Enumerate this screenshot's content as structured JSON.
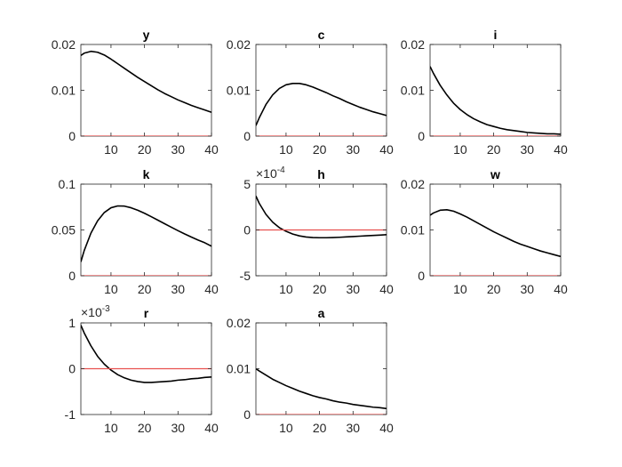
{
  "figure": {
    "background": "#ffffff"
  },
  "styles": {
    "response_color": "#000000",
    "zero_line_color": "#e8514f"
  },
  "chart_data": [
    {
      "type": "line",
      "title": "y",
      "xlim": [
        1,
        40
      ],
      "ylim": [
        0,
        0.02
      ],
      "xticks": [
        10,
        20,
        30,
        40
      ],
      "xtick_labels": [
        "10",
        "20",
        "30",
        "40"
      ],
      "yticks": [
        0,
        0.01,
        0.02
      ],
      "ytick_labels": [
        "0",
        "0.01",
        "0.02"
      ],
      "exponent_label": "",
      "series": [
        {
          "role": "response",
          "x": [
            1,
            2,
            4,
            6,
            8,
            10,
            12,
            14,
            16,
            18,
            20,
            22,
            24,
            26,
            28,
            30,
            32,
            34,
            36,
            38,
            40
          ],
          "y": [
            0.0176,
            0.0181,
            0.0185,
            0.0183,
            0.0177,
            0.0168,
            0.0158,
            0.0148,
            0.0138,
            0.0128,
            0.0119,
            0.011,
            0.0101,
            0.0093,
            0.0086,
            0.0079,
            0.0073,
            0.0067,
            0.0062,
            0.0057,
            0.0052
          ]
        },
        {
          "role": "zero",
          "x": [
            1,
            40
          ],
          "y": [
            0,
            0
          ]
        }
      ]
    },
    {
      "type": "line",
      "title": "c",
      "xlim": [
        1,
        40
      ],
      "ylim": [
        0,
        0.02
      ],
      "xticks": [
        10,
        20,
        30,
        40
      ],
      "xtick_labels": [
        "10",
        "20",
        "30",
        "40"
      ],
      "yticks": [
        0,
        0.01,
        0.02
      ],
      "ytick_labels": [
        "0",
        "0.01",
        "0.02"
      ],
      "exponent_label": "",
      "series": [
        {
          "role": "response",
          "x": [
            1,
            2,
            4,
            6,
            8,
            10,
            12,
            14,
            16,
            18,
            20,
            22,
            24,
            26,
            28,
            30,
            32,
            34,
            36,
            38,
            40
          ],
          "y": [
            0.0023,
            0.004,
            0.0069,
            0.009,
            0.0104,
            0.0112,
            0.0115,
            0.0115,
            0.0112,
            0.0107,
            0.0101,
            0.0095,
            0.0088,
            0.0082,
            0.0075,
            0.0069,
            0.0063,
            0.0058,
            0.0053,
            0.0049,
            0.0045
          ]
        },
        {
          "role": "zero",
          "x": [
            1,
            40
          ],
          "y": [
            0,
            0
          ]
        }
      ]
    },
    {
      "type": "line",
      "title": "i",
      "xlim": [
        1,
        40
      ],
      "ylim": [
        0,
        0.02
      ],
      "xticks": [
        10,
        20,
        30,
        40
      ],
      "xtick_labels": [
        "10",
        "20",
        "30",
        "40"
      ],
      "yticks": [
        0,
        0.01,
        0.02
      ],
      "ytick_labels": [
        "0",
        "0.01",
        "0.02"
      ],
      "exponent_label": "",
      "series": [
        {
          "role": "response",
          "x": [
            1,
            2,
            4,
            6,
            8,
            10,
            12,
            14,
            16,
            18,
            20,
            22,
            24,
            26,
            28,
            30,
            32,
            34,
            36,
            38,
            40
          ],
          "y": [
            0.0152,
            0.0137,
            0.0111,
            0.009,
            0.0072,
            0.0058,
            0.0047,
            0.0038,
            0.0031,
            0.0025,
            0.0021,
            0.0017,
            0.0014,
            0.0012,
            0.001,
            0.0008,
            0.0007,
            0.0006,
            0.0005,
            0.0005,
            0.0004
          ]
        },
        {
          "role": "zero",
          "x": [
            1,
            40
          ],
          "y": [
            0,
            0
          ]
        }
      ]
    },
    {
      "type": "line",
      "title": "k",
      "xlim": [
        1,
        40
      ],
      "ylim": [
        0,
        0.1
      ],
      "xticks": [
        10,
        20,
        30,
        40
      ],
      "xtick_labels": [
        "10",
        "20",
        "30",
        "40"
      ],
      "yticks": [
        0,
        0.05,
        0.1
      ],
      "ytick_labels": [
        "0",
        "0.05",
        "0.1"
      ],
      "exponent_label": "",
      "series": [
        {
          "role": "response",
          "x": [
            1,
            2,
            4,
            6,
            8,
            10,
            12,
            14,
            16,
            18,
            20,
            22,
            24,
            26,
            28,
            30,
            32,
            34,
            36,
            38,
            40
          ],
          "y": [
            0.0152,
            0.0275,
            0.0465,
            0.06,
            0.069,
            0.0742,
            0.0762,
            0.076,
            0.0742,
            0.0715,
            0.0682,
            0.0645,
            0.0607,
            0.0568,
            0.053,
            0.0492,
            0.0456,
            0.0422,
            0.039,
            0.036,
            0.0322
          ]
        },
        {
          "role": "zero",
          "x": [
            1,
            40
          ],
          "y": [
            0,
            0
          ]
        }
      ]
    },
    {
      "type": "line",
      "title": "h",
      "xlim": [
        1,
        40
      ],
      "ylim": [
        -0.0005,
        0.0005
      ],
      "xticks": [
        10,
        20,
        30,
        40
      ],
      "xtick_labels": [
        "10",
        "20",
        "30",
        "40"
      ],
      "yticks": [
        -0.0005,
        0,
        0.0005
      ],
      "ytick_labels": [
        "-5",
        "0",
        "5"
      ],
      "exponent_label": "×10",
      "exponent_power": "-4",
      "series": [
        {
          "role": "response",
          "x": [
            1,
            2,
            4,
            6,
            8,
            10,
            12,
            14,
            16,
            18,
            20,
            22,
            24,
            26,
            28,
            30,
            32,
            34,
            36,
            38,
            40
          ],
          "y": [
            0.00037,
            0.00029,
            0.00017,
            8.5e-05,
            2.5e-05,
            -1.5e-05,
            -4.5e-05,
            -6.5e-05,
            -7.7e-05,
            -8.3e-05,
            -8.5e-05,
            -8.5e-05,
            -8.3e-05,
            -8e-05,
            -7.6e-05,
            -7.2e-05,
            -6.8e-05,
            -6.4e-05,
            -6e-05,
            -5.6e-05,
            -5.2e-05
          ]
        },
        {
          "role": "zero",
          "x": [
            1,
            40
          ],
          "y": [
            0,
            0
          ]
        }
      ]
    },
    {
      "type": "line",
      "title": "w",
      "xlim": [
        1,
        40
      ],
      "ylim": [
        0,
        0.02
      ],
      "xticks": [
        10,
        20,
        30,
        40
      ],
      "xtick_labels": [
        "10",
        "20",
        "30",
        "40"
      ],
      "yticks": [
        0,
        0.01,
        0.02
      ],
      "ytick_labels": [
        "0",
        "0.01",
        "0.02"
      ],
      "exponent_label": "",
      "series": [
        {
          "role": "response",
          "x": [
            1,
            2,
            4,
            6,
            8,
            10,
            12,
            14,
            16,
            18,
            20,
            22,
            24,
            26,
            28,
            30,
            32,
            34,
            36,
            38,
            40
          ],
          "y": [
            0.0132,
            0.0137,
            0.0143,
            0.0144,
            0.0141,
            0.0135,
            0.0128,
            0.012,
            0.0112,
            0.0104,
            0.0096,
            0.0089,
            0.0082,
            0.0075,
            0.0069,
            0.0064,
            0.0059,
            0.0054,
            0.005,
            0.0046,
            0.0042
          ]
        },
        {
          "role": "zero",
          "x": [
            1,
            40
          ],
          "y": [
            0,
            0
          ]
        }
      ]
    },
    {
      "type": "line",
      "title": "r",
      "xlim": [
        1,
        40
      ],
      "ylim": [
        -0.001,
        0.001
      ],
      "xticks": [
        10,
        20,
        30,
        40
      ],
      "xtick_labels": [
        "10",
        "20",
        "30",
        "40"
      ],
      "yticks": [
        -0.001,
        0,
        0.001
      ],
      "ytick_labels": [
        "-1",
        "0",
        "1"
      ],
      "exponent_label": "×10",
      "exponent_power": "-3",
      "series": [
        {
          "role": "response",
          "x": [
            1,
            2,
            4,
            6,
            8,
            10,
            12,
            14,
            16,
            18,
            20,
            22,
            24,
            26,
            28,
            30,
            32,
            34,
            36,
            38,
            40
          ],
          "y": [
            0.00095,
            0.00078,
            0.0005,
            0.00027,
            0.0001,
            -3e-05,
            -0.00013,
            -0.0002,
            -0.00025,
            -0.00028,
            -0.0003,
            -0.0003,
            -0.00029,
            -0.00028,
            -0.00027,
            -0.00025,
            -0.00024,
            -0.00022,
            -0.00021,
            -0.00019,
            -0.00018
          ]
        },
        {
          "role": "zero",
          "x": [
            1,
            40
          ],
          "y": [
            0,
            0
          ]
        }
      ]
    },
    {
      "type": "line",
      "title": "a",
      "xlim": [
        1,
        40
      ],
      "ylim": [
        0,
        0.02
      ],
      "xticks": [
        10,
        20,
        30,
        40
      ],
      "xtick_labels": [
        "10",
        "20",
        "30",
        "40"
      ],
      "yticks": [
        0,
        0.01,
        0.02
      ],
      "ytick_labels": [
        "0",
        "0.01",
        "0.02"
      ],
      "exponent_label": "",
      "series": [
        {
          "role": "response",
          "x": [
            1,
            2,
            4,
            6,
            8,
            10,
            12,
            14,
            16,
            18,
            20,
            22,
            24,
            26,
            28,
            30,
            32,
            34,
            36,
            38,
            40
          ],
          "y": [
            0.01,
            0.0095,
            0.0086,
            0.0077,
            0.007,
            0.0063,
            0.0057,
            0.0051,
            0.0046,
            0.0041,
            0.0037,
            0.0034,
            0.003,
            0.0027,
            0.0025,
            0.0022,
            0.002,
            0.0018,
            0.0016,
            0.0015,
            0.0013
          ]
        },
        {
          "role": "zero",
          "x": [
            1,
            40
          ],
          "y": [
            0,
            0
          ]
        }
      ]
    }
  ]
}
